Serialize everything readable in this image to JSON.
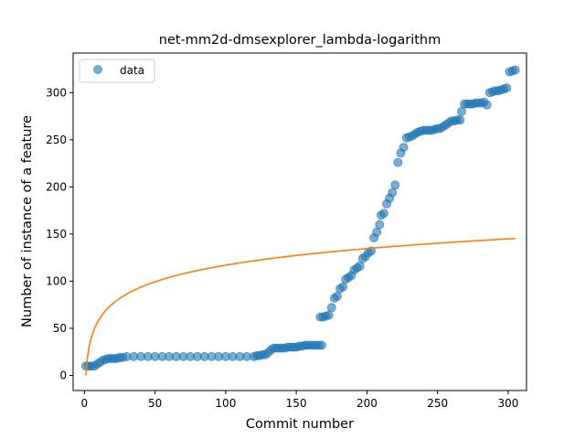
{
  "chart_data": {
    "type": "scatter",
    "title": "net-mm2d-dmsexplorer_lambda-logarithm",
    "xlabel": "Commit number",
    "ylabel": "Number of instance of a feature",
    "xlim": [
      -8,
      313
    ],
    "ylim": [
      -16,
      342
    ],
    "xticks": [
      0,
      50,
      100,
      150,
      200,
      250,
      300
    ],
    "yticks": [
      0,
      50,
      100,
      150,
      200,
      250,
      300
    ],
    "grid": false,
    "legend": {
      "placement": "top-left",
      "entries": [
        "data"
      ]
    },
    "colors": {
      "data": "#1f77b4",
      "fit": "#ff7f0e"
    },
    "series": [
      {
        "name": "data",
        "kind": "scatter",
        "points": [
          [
            1,
            10
          ],
          [
            3,
            10
          ],
          [
            5,
            10
          ],
          [
            7,
            10
          ],
          [
            9,
            12
          ],
          [
            11,
            14
          ],
          [
            13,
            16
          ],
          [
            15,
            17
          ],
          [
            17,
            18
          ],
          [
            19,
            18
          ],
          [
            21,
            18
          ],
          [
            23,
            18
          ],
          [
            25,
            19
          ],
          [
            27,
            19
          ],
          [
            30,
            20
          ],
          [
            35,
            20
          ],
          [
            40,
            20
          ],
          [
            45,
            20
          ],
          [
            50,
            20
          ],
          [
            55,
            20
          ],
          [
            60,
            20
          ],
          [
            65,
            20
          ],
          [
            70,
            20
          ],
          [
            75,
            20
          ],
          [
            80,
            20
          ],
          [
            85,
            20
          ],
          [
            90,
            20
          ],
          [
            95,
            20
          ],
          [
            100,
            20
          ],
          [
            105,
            20
          ],
          [
            110,
            20
          ],
          [
            115,
            20
          ],
          [
            120,
            20
          ],
          [
            122,
            21
          ],
          [
            124,
            21
          ],
          [
            126,
            22
          ],
          [
            128,
            22
          ],
          [
            130,
            24
          ],
          [
            132,
            27
          ],
          [
            134,
            29
          ],
          [
            136,
            29
          ],
          [
            138,
            29
          ],
          [
            140,
            29
          ],
          [
            142,
            29
          ],
          [
            144,
            30
          ],
          [
            146,
            30
          ],
          [
            148,
            30
          ],
          [
            150,
            30
          ],
          [
            152,
            31
          ],
          [
            154,
            31
          ],
          [
            156,
            32
          ],
          [
            158,
            32
          ],
          [
            160,
            32
          ],
          [
            162,
            32
          ],
          [
            164,
            32
          ],
          [
            166,
            32
          ],
          [
            168,
            32
          ],
          [
            167,
            62
          ],
          [
            169,
            62
          ],
          [
            171,
            63
          ],
          [
            173,
            64
          ],
          [
            175,
            72
          ],
          [
            177,
            82
          ],
          [
            179,
            84
          ],
          [
            181,
            92
          ],
          [
            183,
            94
          ],
          [
            185,
            102
          ],
          [
            187,
            104
          ],
          [
            189,
            106
          ],
          [
            191,
            112
          ],
          [
            193,
            114
          ],
          [
            195,
            116
          ],
          [
            197,
            124
          ],
          [
            199,
            126
          ],
          [
            201,
            130
          ],
          [
            203,
            132
          ],
          [
            205,
            146
          ],
          [
            207,
            152
          ],
          [
            209,
            160
          ],
          [
            210,
            170
          ],
          [
            212,
            172
          ],
          [
            214,
            182
          ],
          [
            216,
            188
          ],
          [
            218,
            194
          ],
          [
            220,
            202
          ],
          [
            222,
            226
          ],
          [
            224,
            236
          ],
          [
            226,
            242
          ],
          [
            228,
            252
          ],
          [
            230,
            253
          ],
          [
            232,
            254
          ],
          [
            234,
            256
          ],
          [
            236,
            258
          ],
          [
            238,
            259
          ],
          [
            240,
            260
          ],
          [
            242,
            260
          ],
          [
            244,
            260
          ],
          [
            246,
            260
          ],
          [
            248,
            261
          ],
          [
            250,
            262
          ],
          [
            252,
            262
          ],
          [
            254,
            264
          ],
          [
            256,
            266
          ],
          [
            258,
            268
          ],
          [
            260,
            270
          ],
          [
            262,
            270
          ],
          [
            264,
            271
          ],
          [
            266,
            271
          ],
          [
            267,
            280
          ],
          [
            269,
            288
          ],
          [
            271,
            288
          ],
          [
            273,
            288
          ],
          [
            275,
            288
          ],
          [
            277,
            289
          ],
          [
            279,
            289
          ],
          [
            281,
            289
          ],
          [
            283,
            290
          ],
          [
            285,
            287
          ],
          [
            287,
            300
          ],
          [
            289,
            301
          ],
          [
            291,
            302
          ],
          [
            293,
            302
          ],
          [
            295,
            303
          ],
          [
            297,
            304
          ],
          [
            299,
            305
          ],
          [
            301,
            322
          ],
          [
            303,
            323
          ],
          [
            305,
            324
          ]
        ]
      },
      {
        "kind": "line",
        "formula": "y = 25.4 * ln(x)",
        "x_range": [
          1,
          305
        ]
      }
    ]
  }
}
